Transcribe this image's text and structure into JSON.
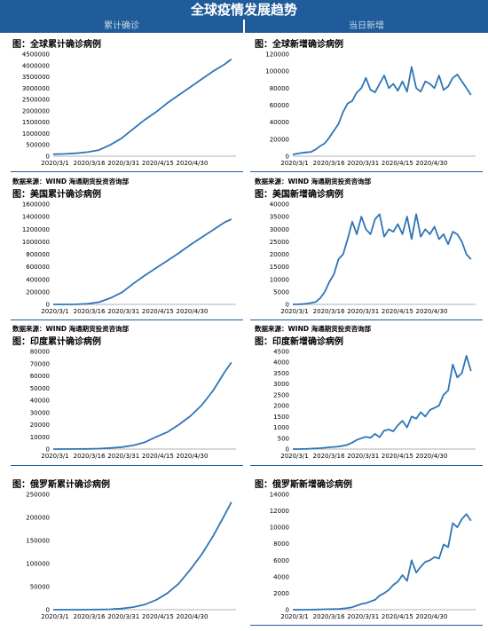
{
  "header": {
    "title": "全球疫情发展趋势",
    "left_tab": "累计确诊",
    "right_tab": "当日新增"
  },
  "source_text": "数据来源：WIND  海通期货投资咨询部",
  "colors": {
    "header_bg": "#1f5c99",
    "line": "#2e75b6"
  },
  "chart_data": [
    {
      "id": "global-cum",
      "type": "line",
      "title": "图：全球累计确诊病例",
      "xlabel": "",
      "ylabel": "",
      "x_ticks": [
        "2020/3/1",
        "2020/3/16",
        "2020/3/31",
        "2020/4/15",
        "2020/4/30"
      ],
      "y_ticks": [
        0,
        500000,
        1000000,
        1500000,
        2000000,
        2500000,
        3000000,
        3500000,
        4000000,
        4500000
      ],
      "ylim": [
        0,
        4500000
      ],
      "x_range": [
        0,
        80
      ],
      "series": [
        {
          "x": [
            0,
            5,
            10,
            15,
            20,
            25,
            30,
            35,
            40,
            45,
            50,
            55,
            60,
            65,
            70,
            75,
            78
          ],
          "values": [
            88000,
            100000,
            130000,
            180000,
            270000,
            500000,
            800000,
            1200000,
            1600000,
            1950000,
            2350000,
            2700000,
            3050000,
            3400000,
            3750000,
            4050000,
            4280000
          ]
        }
      ]
    },
    {
      "id": "global-new",
      "type": "line",
      "title": "图：全球新增确诊病例",
      "xlabel": "",
      "ylabel": "",
      "x_ticks": [
        "2020/3/1",
        "2020/3/16",
        "2020/3/31",
        "2020/4/15",
        "2020/4/30"
      ],
      "y_ticks": [
        0,
        20000,
        40000,
        60000,
        80000,
        100000,
        120000
      ],
      "ylim": [
        0,
        120000
      ],
      "x_range": [
        0,
        80
      ],
      "series": [
        {
          "x": [
            0,
            2,
            4,
            6,
            8,
            10,
            12,
            14,
            16,
            18,
            20,
            22,
            24,
            26,
            28,
            30,
            32,
            34,
            36,
            38,
            40,
            42,
            44,
            46,
            48,
            50,
            52,
            54,
            56,
            58,
            60,
            62,
            64,
            66,
            68,
            70,
            72,
            74,
            76,
            78
          ],
          "values": [
            2000,
            3000,
            4000,
            4500,
            5000,
            8000,
            12000,
            15000,
            22000,
            30000,
            38000,
            52000,
            62000,
            65000,
            75000,
            80000,
            92000,
            78000,
            75000,
            85000,
            95000,
            80000,
            85000,
            77000,
            88000,
            76000,
            105000,
            80000,
            76000,
            88000,
            85000,
            80000,
            95000,
            78000,
            82000,
            92000,
            96000,
            88000,
            80000,
            72000
          ]
        }
      ]
    },
    {
      "id": "us-cum",
      "type": "line",
      "title": "图：美国累计确诊病例",
      "xlabel": "",
      "ylabel": "",
      "x_ticks": [
        "2020/3/1",
        "2020/3/16",
        "2020/3/31",
        "2020/4/15",
        "2020/4/30"
      ],
      "y_ticks": [
        0,
        200000,
        400000,
        600000,
        800000,
        1000000,
        1200000,
        1400000,
        1600000
      ],
      "ylim": [
        0,
        1600000
      ],
      "x_range": [
        0,
        80
      ],
      "series": [
        {
          "x": [
            0,
            5,
            10,
            15,
            20,
            25,
            30,
            35,
            40,
            45,
            50,
            55,
            60,
            65,
            70,
            75,
            78
          ],
          "values": [
            100,
            500,
            2000,
            10000,
            35000,
            100000,
            190000,
            330000,
            460000,
            580000,
            700000,
            820000,
            950000,
            1070000,
            1190000,
            1310000,
            1360000
          ]
        }
      ]
    },
    {
      "id": "us-new",
      "type": "line",
      "title": "图：美国新增确诊病例",
      "xlabel": "",
      "ylabel": "",
      "x_ticks": [
        "2020/3/1",
        "2020/3/16",
        "2020/3/31",
        "2020/4/15",
        "2020/4/30"
      ],
      "y_ticks": [
        0,
        5000,
        10000,
        15000,
        20000,
        25000,
        30000,
        35000,
        40000
      ],
      "ylim": [
        0,
        40000
      ],
      "x_range": [
        0,
        80
      ],
      "series": [
        {
          "x": [
            0,
            2,
            4,
            6,
            8,
            10,
            12,
            14,
            16,
            18,
            20,
            22,
            24,
            26,
            28,
            30,
            32,
            34,
            36,
            38,
            40,
            42,
            44,
            46,
            48,
            50,
            52,
            54,
            56,
            58,
            60,
            62,
            64,
            66,
            68,
            70,
            72,
            74,
            76,
            78
          ],
          "values": [
            0,
            50,
            100,
            300,
            600,
            1000,
            2500,
            5000,
            9000,
            12000,
            18000,
            20000,
            26000,
            33000,
            28000,
            35000,
            30000,
            28000,
            34000,
            36000,
            27000,
            30000,
            29000,
            32000,
            28000,
            35000,
            26000,
            36000,
            27000,
            30000,
            28000,
            31000,
            26000,
            28000,
            24000,
            29000,
            28000,
            25000,
            20000,
            18000
          ]
        }
      ]
    },
    {
      "id": "india-cum",
      "type": "line",
      "title": "图：印度累计确诊病例",
      "xlabel": "",
      "ylabel": "",
      "x_ticks": [
        "2020/3/1",
        "2020/3/16",
        "2020/3/31",
        "2020/4/15",
        "2020/4/30"
      ],
      "y_ticks": [
        0,
        10000,
        20000,
        30000,
        40000,
        50000,
        60000,
        70000,
        80000
      ],
      "ylim": [
        0,
        80000
      ],
      "x_range": [
        0,
        80
      ],
      "series": [
        {
          "x": [
            0,
            5,
            10,
            15,
            20,
            25,
            30,
            35,
            40,
            45,
            50,
            55,
            60,
            65,
            70,
            75,
            78
          ],
          "values": [
            3,
            30,
            80,
            150,
            400,
            900,
            1600,
            3000,
            5500,
            10000,
            14000,
            20000,
            27000,
            36000,
            48000,
            63000,
            71000
          ]
        }
      ]
    },
    {
      "id": "india-new",
      "type": "line",
      "title": "图：印度新增确诊病例",
      "xlabel": "",
      "ylabel": "",
      "x_ticks": [
        "2020/3/1",
        "2020/3/16",
        "2020/3/31",
        "2020/4/15",
        "2020/4/30"
      ],
      "y_ticks": [
        0,
        500,
        1000,
        1500,
        2000,
        2500,
        3000,
        3500,
        4000,
        4500
      ],
      "ylim": [
        0,
        4500
      ],
      "x_range": [
        0,
        80
      ],
      "series": [
        {
          "x": [
            0,
            2,
            4,
            6,
            8,
            10,
            12,
            14,
            16,
            18,
            20,
            22,
            24,
            26,
            28,
            30,
            32,
            34,
            36,
            38,
            40,
            42,
            44,
            46,
            48,
            50,
            52,
            54,
            56,
            58,
            60,
            62,
            64,
            66,
            68,
            70,
            72,
            74,
            76,
            78
          ],
          "values": [
            0,
            2,
            5,
            10,
            20,
            30,
            40,
            60,
            80,
            100,
            120,
            150,
            200,
            300,
            420,
            500,
            560,
            520,
            700,
            550,
            850,
            900,
            820,
            1100,
            1300,
            1000,
            1500,
            1400,
            1700,
            1500,
            1800,
            1900,
            2000,
            2500,
            2700,
            3900,
            3300,
            3500,
            4300,
            3600
          ]
        }
      ]
    },
    {
      "id": "russia-cum",
      "type": "line",
      "title": "图：俄罗斯累计确诊病例",
      "xlabel": "",
      "ylabel": "",
      "x_ticks": [
        "2020/3/1",
        "2020/3/16",
        "2020/3/31",
        "2020/4/15",
        "2020/4/30"
      ],
      "y_ticks": [
        0,
        50000,
        100000,
        150000,
        200000,
        250000
      ],
      "ylim": [
        0,
        250000
      ],
      "x_range": [
        0,
        80
      ],
      "series": [
        {
          "x": [
            0,
            5,
            10,
            15,
            20,
            25,
            30,
            35,
            40,
            45,
            50,
            55,
            60,
            65,
            70,
            75,
            78
          ],
          "values": [
            3,
            10,
            30,
            100,
            300,
            1000,
            2500,
            5500,
            11000,
            21000,
            36000,
            57000,
            87000,
            120000,
            160000,
            205000,
            233000
          ]
        }
      ]
    },
    {
      "id": "russia-new",
      "type": "line",
      "title": "图：俄罗斯新增确诊病例",
      "xlabel": "",
      "ylabel": "",
      "x_ticks": [
        "2020/3/1",
        "2020/3/16",
        "2020/3/31",
        "2020/4/15",
        "2020/4/30"
      ],
      "y_ticks": [
        0,
        2000,
        4000,
        6000,
        8000,
        10000,
        12000,
        14000
      ],
      "ylim": [
        0,
        14000
      ],
      "x_range": [
        0,
        80
      ],
      "series": [
        {
          "x": [
            0,
            2,
            4,
            6,
            8,
            10,
            12,
            14,
            16,
            18,
            20,
            22,
            24,
            26,
            28,
            30,
            32,
            34,
            36,
            38,
            40,
            42,
            44,
            46,
            48,
            50,
            52,
            54,
            56,
            58,
            60,
            62,
            64,
            66,
            68,
            70,
            72,
            74,
            76,
            78
          ],
          "values": [
            0,
            2,
            5,
            5,
            10,
            20,
            30,
            50,
            60,
            80,
            100,
            150,
            200,
            300,
            500,
            700,
            800,
            1000,
            1200,
            1700,
            2000,
            2400,
            3000,
            3400,
            4200,
            3500,
            6000,
            4500,
            5200,
            5800,
            6000,
            6400,
            6200,
            7900,
            7600,
            10500,
            10000,
            11000,
            11600,
            10800
          ]
        }
      ]
    }
  ]
}
